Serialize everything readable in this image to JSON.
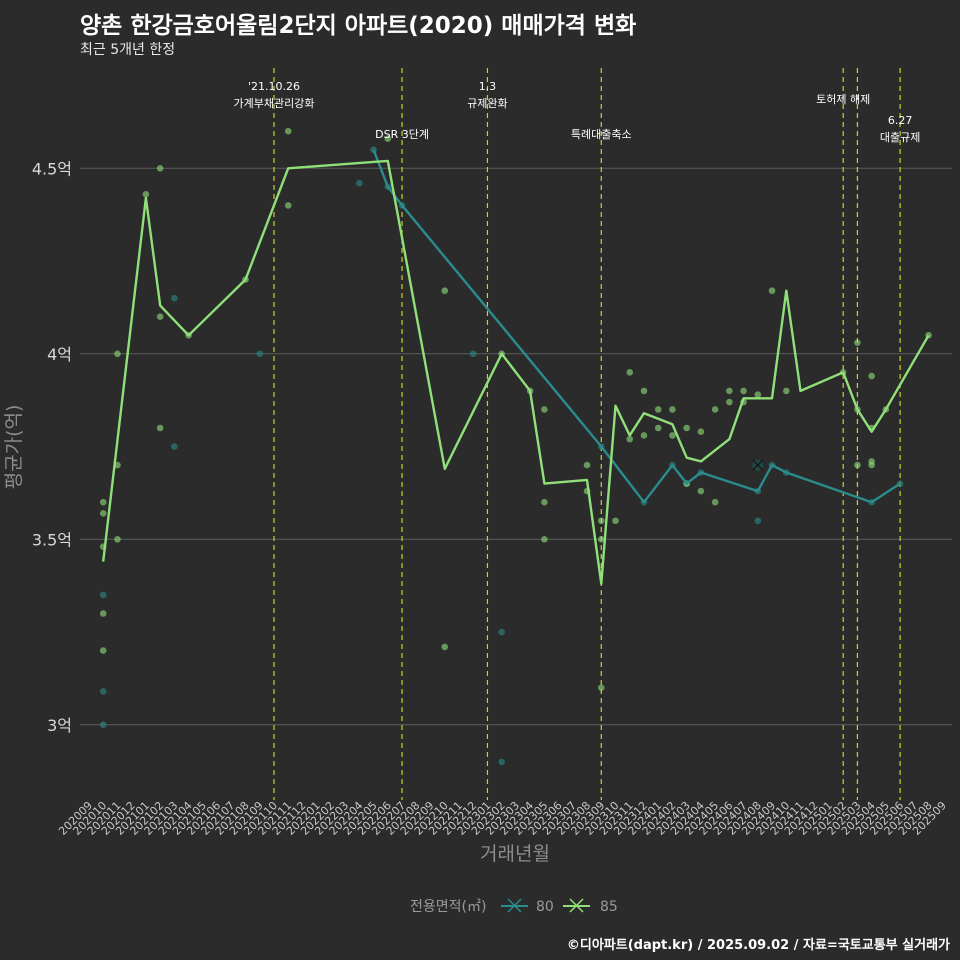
{
  "title": "양촌 한강금호어울림2단지 아파트(2020) 매매가격 변화",
  "subtitle": "최근 5개년 한정",
  "caption": "©디아파트(dapt.kr) / 2025.09.02 / 자료=국토교통부 실거래가",
  "colors": {
    "s80": "#2a8c8c",
    "s85": "#90e07a",
    "vline": "#c8d22a",
    "grid": "#5c5c5c",
    "bg": "#2b2b2b"
  },
  "chart_data": {
    "type": "line",
    "xlabel": "거래년월",
    "ylabel": "평균가(억)",
    "ylim": [
      2.8,
      4.8
    ],
    "yticks": [
      3,
      3.5,
      4,
      4.5
    ],
    "ytick_labels": [
      "3억",
      "3.5억",
      "4억",
      "4.5억"
    ],
    "x_months": [
      "202009",
      "202010",
      "202011",
      "202012",
      "202101",
      "202102",
      "202103",
      "202104",
      "202105",
      "202106",
      "202107",
      "202108",
      "202109",
      "202110",
      "202111",
      "202112",
      "202201",
      "202202",
      "202203",
      "202204",
      "202205",
      "202206",
      "202207",
      "202208",
      "202209",
      "202210",
      "202211",
      "202212",
      "202301",
      "202302",
      "202303",
      "202304",
      "202305",
      "202306",
      "202307",
      "202308",
      "202309",
      "202310",
      "202311",
      "202312",
      "202401",
      "202402",
      "202403",
      "202404",
      "202405",
      "202406",
      "202407",
      "202408",
      "202409",
      "202410",
      "202411",
      "202412",
      "202501",
      "202502",
      "202503",
      "202504",
      "202505",
      "202506",
      "202507",
      "202508",
      "202509"
    ],
    "legend_title": "전용면적(㎡)",
    "series": [
      {
        "name": "80",
        "line": [
          [
            "202205",
            4.55
          ],
          [
            "202206",
            4.45
          ],
          [
            "202207",
            4.4
          ],
          [
            "202309",
            3.75
          ],
          [
            "202312",
            3.6
          ],
          [
            "202402",
            3.7
          ],
          [
            "202403",
            3.65
          ],
          [
            "202404",
            3.68
          ],
          [
            "202408",
            3.63
          ],
          [
            "202409",
            3.7
          ],
          [
            "202410",
            3.68
          ],
          [
            "202504",
            3.6
          ],
          [
            "202506",
            3.65
          ]
        ],
        "points": [
          [
            "202010",
            3.35
          ],
          [
            "202010",
            3.09
          ],
          [
            "202010",
            3.0
          ],
          [
            "202103",
            4.15
          ],
          [
            "202103",
            3.75
          ],
          [
            "202109",
            4.0
          ],
          [
            "202204",
            4.46
          ],
          [
            "202205",
            4.55
          ],
          [
            "202206",
            4.45
          ],
          [
            "202207",
            4.4
          ],
          [
            "202212",
            4.0
          ],
          [
            "202302",
            3.25
          ],
          [
            "202302",
            2.9
          ],
          [
            "202309",
            3.75
          ],
          [
            "202312",
            3.6
          ],
          [
            "202402",
            3.7
          ],
          [
            "202403",
            3.65
          ],
          [
            "202404",
            3.68
          ],
          [
            "202408",
            3.63
          ],
          [
            "202408",
            3.55
          ],
          [
            "202409",
            3.7
          ],
          [
            "202410",
            3.68
          ],
          [
            "202504",
            3.6
          ],
          [
            "202506",
            3.65
          ]
        ],
        "highlight": [
          [
            "202408",
            3.7
          ]
        ]
      },
      {
        "name": "85",
        "line": [
          [
            "202010",
            3.44
          ],
          [
            "202101",
            4.42
          ],
          [
            "202102",
            4.13
          ],
          [
            "202104",
            4.05
          ],
          [
            "202108",
            4.2
          ],
          [
            "202111",
            4.5
          ],
          [
            "202206",
            4.52
          ],
          [
            "202210",
            3.69
          ],
          [
            "202302",
            4.0
          ],
          [
            "202304",
            3.9
          ],
          [
            "202305",
            3.65
          ],
          [
            "202308",
            3.66
          ],
          [
            "202309",
            3.38
          ],
          [
            "202310",
            3.86
          ],
          [
            "202311",
            3.78
          ],
          [
            "202312",
            3.84
          ],
          [
            "202402",
            3.81
          ],
          [
            "202403",
            3.72
          ],
          [
            "202404",
            3.71
          ],
          [
            "202406",
            3.77
          ],
          [
            "202407",
            3.88
          ],
          [
            "202409",
            3.88
          ],
          [
            "202410",
            4.17
          ],
          [
            "202411",
            3.9
          ],
          [
            "202502",
            3.95
          ],
          [
            "202503",
            3.85
          ],
          [
            "202504",
            3.79
          ],
          [
            "202505",
            3.85
          ],
          [
            "202508",
            4.05
          ]
        ],
        "points": [
          [
            "202010",
            3.6
          ],
          [
            "202010",
            3.57
          ],
          [
            "202010",
            3.48
          ],
          [
            "202010",
            3.3
          ],
          [
            "202010",
            3.2
          ],
          [
            "202011",
            4.0
          ],
          [
            "202011",
            3.7
          ],
          [
            "202011",
            3.5
          ],
          [
            "202101",
            4.43
          ],
          [
            "202102",
            4.5
          ],
          [
            "202102",
            4.1
          ],
          [
            "202102",
            3.8
          ],
          [
            "202104",
            4.05
          ],
          [
            "202108",
            4.2
          ],
          [
            "202111",
            4.6
          ],
          [
            "202111",
            4.4
          ],
          [
            "202206",
            4.58
          ],
          [
            "202210",
            4.17
          ],
          [
            "202210",
            3.21
          ],
          [
            "202302",
            4.0
          ],
          [
            "202304",
            3.9
          ],
          [
            "202305",
            3.85
          ],
          [
            "202305",
            3.6
          ],
          [
            "202305",
            3.5
          ],
          [
            "202308",
            3.7
          ],
          [
            "202308",
            3.63
          ],
          [
            "202309",
            3.55
          ],
          [
            "202309",
            3.5
          ],
          [
            "202309",
            3.1
          ],
          [
            "202310",
            3.55
          ],
          [
            "202311",
            3.95
          ],
          [
            "202311",
            3.77
          ],
          [
            "202312",
            3.78
          ],
          [
            "202312",
            3.9
          ],
          [
            "202401",
            3.85
          ],
          [
            "202401",
            3.8
          ],
          [
            "202402",
            3.85
          ],
          [
            "202402",
            3.78
          ],
          [
            "202403",
            3.8
          ],
          [
            "202403",
            3.65
          ],
          [
            "202404",
            3.79
          ],
          [
            "202404",
            3.63
          ],
          [
            "202405",
            3.85
          ],
          [
            "202405",
            3.6
          ],
          [
            "202406",
            3.9
          ],
          [
            "202406",
            3.87
          ],
          [
            "202407",
            3.9
          ],
          [
            "202407",
            3.87
          ],
          [
            "202408",
            3.89
          ],
          [
            "202409",
            4.17
          ],
          [
            "202410",
            3.9
          ],
          [
            "202502",
            3.95
          ],
          [
            "202503",
            4.03
          ],
          [
            "202503",
            3.85
          ],
          [
            "202503",
            3.7
          ],
          [
            "202504",
            3.94
          ],
          [
            "202504",
            3.8
          ],
          [
            "202504",
            3.71
          ],
          [
            "202504",
            3.7
          ],
          [
            "202505",
            3.85
          ],
          [
            "202508",
            4.05
          ]
        ]
      }
    ],
    "events": [
      {
        "month": "202110",
        "label": "'21.10.26\n가계부채관리강화",
        "level": 0
      },
      {
        "month": "202207",
        "label": "DSR 3단계",
        "level": 2
      },
      {
        "month": "202301",
        "label": "1.3\n규제완화",
        "level": 0
      },
      {
        "month": "202309",
        "label": "특례대출축소",
        "level": 2
      },
      {
        "month": "202502",
        "label": "토허제 해제",
        "level": 1
      },
      {
        "month": "202503",
        "label": "",
        "level": 0
      },
      {
        "month": "202506",
        "label": "6.27\n대출규제",
        "level": 3
      }
    ]
  }
}
